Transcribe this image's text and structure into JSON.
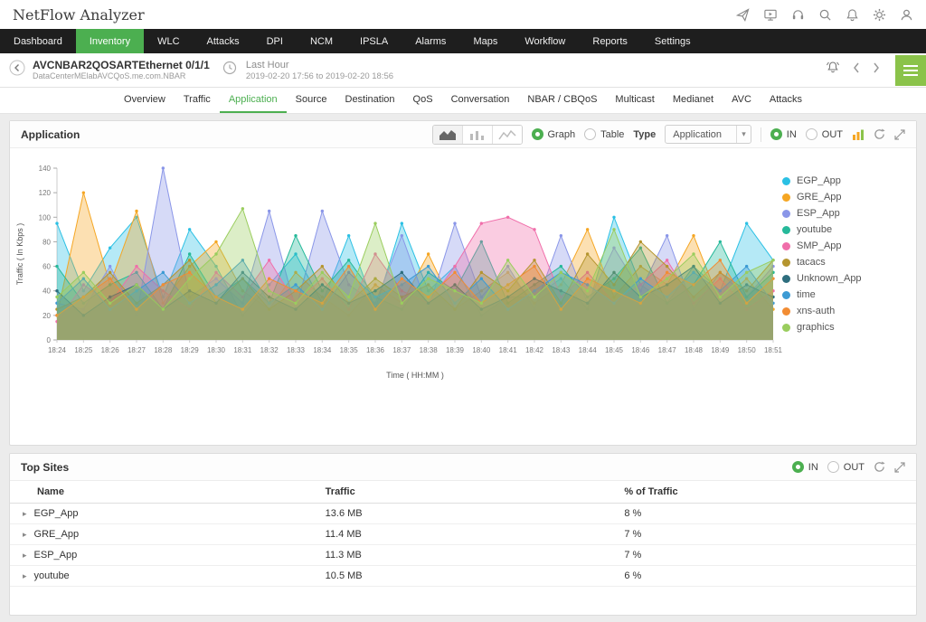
{
  "app": {
    "title": "NetFlow Analyzer",
    "accent_color": "#4caf50",
    "nav_bg": "#1e1e1e"
  },
  "topbar": {
    "icons": [
      "paper-plane-icon",
      "monitor-icon",
      "headset-icon",
      "search-icon",
      "bell-icon",
      "gear-icon",
      "user-icon"
    ]
  },
  "nav": {
    "items": [
      "Dashboard",
      "Inventory",
      "WLC",
      "Attacks",
      "DPI",
      "NCM",
      "IPSLA",
      "Alarms",
      "Maps",
      "Workflow",
      "Reports",
      "Settings"
    ],
    "active": "Inventory"
  },
  "device_bar": {
    "name": "AVCNBAR2QOSARTEthernet 0/1/1",
    "subtitle": "DataCenterMElabAVCQoS.me.com.NBAR",
    "time_label": "Last Hour",
    "time_range": "2019-02-20 17:56 to 2019-02-20 18:56"
  },
  "tabs": {
    "items": [
      "Overview",
      "Traffic",
      "Application",
      "Source",
      "Destination",
      "QoS",
      "Conversation",
      "NBAR / CBQoS",
      "Multicast",
      "Medianet",
      "AVC",
      "Attacks"
    ],
    "active": "Application"
  },
  "application_card": {
    "title": "Application",
    "graph_label": "Graph",
    "table_label": "Table",
    "type_label": "Type",
    "type_value": "Application",
    "in_label": "IN",
    "out_label": "OUT",
    "selected_view": "Graph",
    "selected_direction": "IN"
  },
  "chart_data": {
    "type": "area",
    "title": "",
    "xlabel": "Time ( HH:MM )",
    "ylabel": "Traffic ( In Kbps )",
    "ylim": [
      0,
      140
    ],
    "yticks": [
      0,
      20,
      40,
      60,
      80,
      100,
      120,
      140
    ],
    "grid": false,
    "legend_position": "right",
    "x": [
      "18:24",
      "18:25",
      "18:26",
      "18:27",
      "18:28",
      "18:29",
      "18:30",
      "18:31",
      "18:32",
      "18:33",
      "18:34",
      "18:35",
      "18:36",
      "18:37",
      "18:38",
      "18:39",
      "18:40",
      "18:41",
      "18:42",
      "18:43",
      "18:44",
      "18:45",
      "18:46",
      "18:47",
      "18:48",
      "18:49",
      "18:50",
      "18:51"
    ],
    "series": [
      {
        "name": "EGP_App",
        "color": "#2bc0e4",
        "values": [
          95,
          40,
          75,
          100,
          35,
          90,
          60,
          20,
          45,
          70,
          30,
          85,
          25,
          95,
          40,
          60,
          20,
          35,
          35,
          50,
          25,
          100,
          45,
          30,
          60,
          40,
          95,
          65
        ]
      },
      {
        "name": "GRE_App",
        "color": "#f5a623",
        "values": [
          20,
          120,
          45,
          105,
          30,
          60,
          80,
          40,
          25,
          55,
          35,
          20,
          45,
          30,
          70,
          25,
          40,
          55,
          30,
          45,
          90,
          35,
          60,
          45,
          85,
          30,
          50,
          25
        ]
      },
      {
        "name": "ESP_App",
        "color": "#8a96e8",
        "values": [
          30,
          25,
          60,
          20,
          140,
          35,
          50,
          30,
          105,
          25,
          105,
          45,
          30,
          85,
          25,
          95,
          35,
          60,
          25,
          85,
          30,
          75,
          40,
          85,
          25,
          55,
          35,
          60
        ]
      },
      {
        "name": "youtube",
        "color": "#26b99a",
        "values": [
          60,
          30,
          45,
          55,
          25,
          70,
          35,
          50,
          30,
          85,
          40,
          65,
          35,
          25,
          55,
          40,
          80,
          30,
          45,
          60,
          35,
          50,
          75,
          30,
          45,
          80,
          35,
          55
        ]
      },
      {
        "name": "SMP_App",
        "color": "#f06eaa",
        "values": [
          15,
          45,
          30,
          60,
          40,
          25,
          55,
          35,
          65,
          30,
          50,
          25,
          70,
          40,
          30,
          60,
          95,
          100,
          90,
          35,
          55,
          30,
          45,
          65,
          30,
          50,
          25,
          40
        ]
      },
      {
        "name": "tacacs",
        "color": "#b5952f",
        "values": [
          25,
          35,
          55,
          30,
          45,
          65,
          30,
          50,
          25,
          40,
          60,
          30,
          50,
          35,
          45,
          25,
          55,
          40,
          65,
          30,
          70,
          45,
          80,
          60,
          35,
          55,
          40,
          65
        ]
      },
      {
        "name": "Unknown_App",
        "color": "#2e6e7e",
        "values": [
          40,
          20,
          35,
          45,
          25,
          40,
          30,
          55,
          35,
          25,
          45,
          30,
          40,
          55,
          30,
          45,
          25,
          35,
          50,
          40,
          30,
          55,
          35,
          45,
          60,
          30,
          45,
          35
        ]
      },
      {
        "name": "time",
        "color": "#3d9bd4",
        "values": [
          30,
          50,
          25,
          40,
          55,
          30,
          45,
          65,
          30,
          45,
          25,
          55,
          35,
          45,
          60,
          30,
          50,
          25,
          40,
          55,
          45,
          30,
          50,
          35,
          55,
          40,
          60,
          30
        ]
      },
      {
        "name": "xns-auth",
        "color": "#f28c33",
        "values": [
          20,
          35,
          50,
          25,
          45,
          55,
          35,
          25,
          50,
          40,
          30,
          60,
          25,
          50,
          35,
          55,
          30,
          45,
          60,
          25,
          50,
          40,
          30,
          55,
          45,
          65,
          30,
          50
        ]
      },
      {
        "name": "graphics",
        "color": "#9acd5e",
        "values": [
          35,
          55,
          30,
          45,
          25,
          50,
          70,
          107,
          40,
          30,
          55,
          35,
          95,
          30,
          50,
          40,
          30,
          65,
          35,
          55,
          40,
          90,
          35,
          50,
          70,
          35,
          55,
          65
        ]
      }
    ]
  },
  "top_sites": {
    "title": "Top Sites",
    "in_label": "IN",
    "out_label": "OUT",
    "selected_direction": "IN",
    "columns": [
      "Name",
      "Traffic",
      "% of Traffic"
    ],
    "rows": [
      {
        "name": "EGP_App",
        "traffic": "13.6 MB",
        "percent": "8 %"
      },
      {
        "name": "GRE_App",
        "traffic": "11.4 MB",
        "percent": "7 %"
      },
      {
        "name": "ESP_App",
        "traffic": "11.3 MB",
        "percent": "7 %"
      },
      {
        "name": "youtube",
        "traffic": "10.5 MB",
        "percent": "6 %"
      }
    ]
  }
}
